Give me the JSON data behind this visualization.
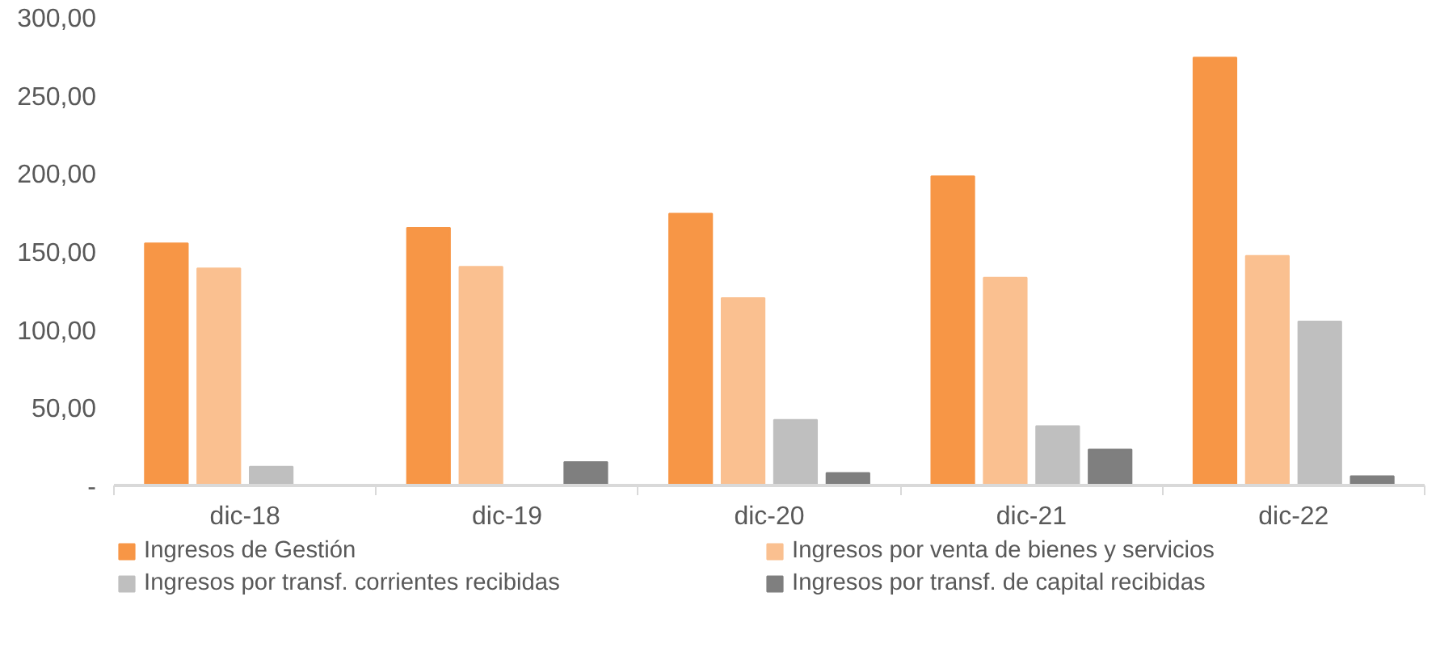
{
  "chart_data": {
    "type": "bar",
    "categories": [
      "dic-18",
      "dic-19",
      "dic-20",
      "dic-21",
      "dic-22"
    ],
    "series": [
      {
        "name": "Ingresos de Gestión",
        "color": "#f79646",
        "values": [
          155,
          165,
          174,
          198,
          274
        ]
      },
      {
        "name": "Ingresos por venta de bienes y servicios",
        "color": "#fac090",
        "values": [
          139,
          140,
          120,
          133,
          147
        ]
      },
      {
        "name": "Ingresos por transf. corrientes recibidas",
        "color": "#bfbfbf",
        "values": [
          12,
          null,
          42,
          38,
          105
        ]
      },
      {
        "name": "Ingresos por transf. de capital recibidas",
        "color": "#7f7f7f",
        "values": [
          0,
          15,
          8,
          23,
          6
        ]
      }
    ],
    "ylim": [
      0,
      300
    ],
    "yticks": [
      {
        "value": 0,
        "label": "-"
      },
      {
        "value": 50,
        "label": "50,00"
      },
      {
        "value": 100,
        "label": "100,00"
      },
      {
        "value": 150,
        "label": "150,00"
      },
      {
        "value": 200,
        "label": "200,00"
      },
      {
        "value": 250,
        "label": "250,00"
      },
      {
        "value": 300,
        "label": "300,00"
      }
    ],
    "grid": false,
    "legend": "bottom"
  }
}
